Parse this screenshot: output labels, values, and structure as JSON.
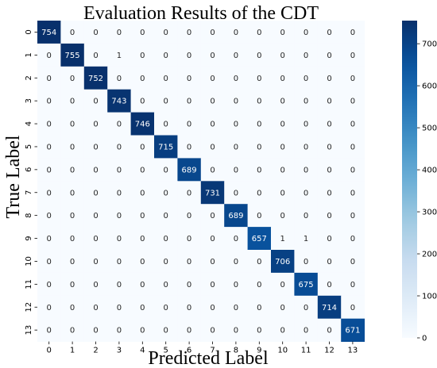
{
  "chart_data": {
    "type": "heatmap",
    "title": "Evaluation Results of the CDT",
    "xlabel": "Predicted Label",
    "ylabel": "True Label",
    "x_categories": [
      "0",
      "1",
      "2",
      "3",
      "4",
      "5",
      "6",
      "7",
      "8",
      "9",
      "10",
      "11",
      "12",
      "13"
    ],
    "y_categories": [
      "0",
      "1",
      "2",
      "3",
      "4",
      "5",
      "6",
      "7",
      "8",
      "9",
      "10",
      "11",
      "12",
      "13"
    ],
    "values": [
      [
        754,
        0,
        0,
        0,
        0,
        0,
        0,
        0,
        0,
        0,
        0,
        0,
        0,
        0
      ],
      [
        0,
        755,
        0,
        1,
        0,
        0,
        0,
        0,
        0,
        0,
        0,
        0,
        0,
        0
      ],
      [
        0,
        0,
        752,
        0,
        0,
        0,
        0,
        0,
        0,
        0,
        0,
        0,
        0,
        0
      ],
      [
        0,
        0,
        0,
        743,
        0,
        0,
        0,
        0,
        0,
        0,
        0,
        0,
        0,
        0
      ],
      [
        0,
        0,
        0,
        0,
        746,
        0,
        0,
        0,
        0,
        0,
        0,
        0,
        0,
        0
      ],
      [
        0,
        0,
        0,
        0,
        0,
        715,
        0,
        0,
        0,
        0,
        0,
        0,
        0,
        0
      ],
      [
        0,
        0,
        0,
        0,
        0,
        0,
        689,
        0,
        0,
        0,
        0,
        0,
        0,
        0
      ],
      [
        0,
        0,
        0,
        0,
        0,
        0,
        0,
        731,
        0,
        0,
        0,
        0,
        0,
        0
      ],
      [
        0,
        0,
        0,
        0,
        0,
        0,
        0,
        0,
        689,
        0,
        0,
        0,
        0,
        0
      ],
      [
        0,
        0,
        0,
        0,
        0,
        0,
        0,
        0,
        0,
        657,
        1,
        1,
        0,
        0
      ],
      [
        0,
        0,
        0,
        0,
        0,
        0,
        0,
        0,
        0,
        0,
        706,
        0,
        0,
        0
      ],
      [
        0,
        0,
        0,
        0,
        0,
        0,
        0,
        0,
        0,
        0,
        0,
        675,
        0,
        0
      ],
      [
        0,
        0,
        0,
        0,
        0,
        0,
        0,
        0,
        0,
        0,
        0,
        0,
        714,
        0
      ],
      [
        0,
        0,
        0,
        0,
        0,
        0,
        0,
        0,
        0,
        0,
        0,
        0,
        0,
        671
      ]
    ],
    "colorbar": {
      "min": 0,
      "max": 755,
      "ticks": [
        0,
        100,
        200,
        300,
        400,
        500,
        600,
        700
      ],
      "colormap": "Blues",
      "low_color": "#f7fbff",
      "high_color": "#08306b"
    },
    "grid": false,
    "legend": "colorbar-right"
  }
}
